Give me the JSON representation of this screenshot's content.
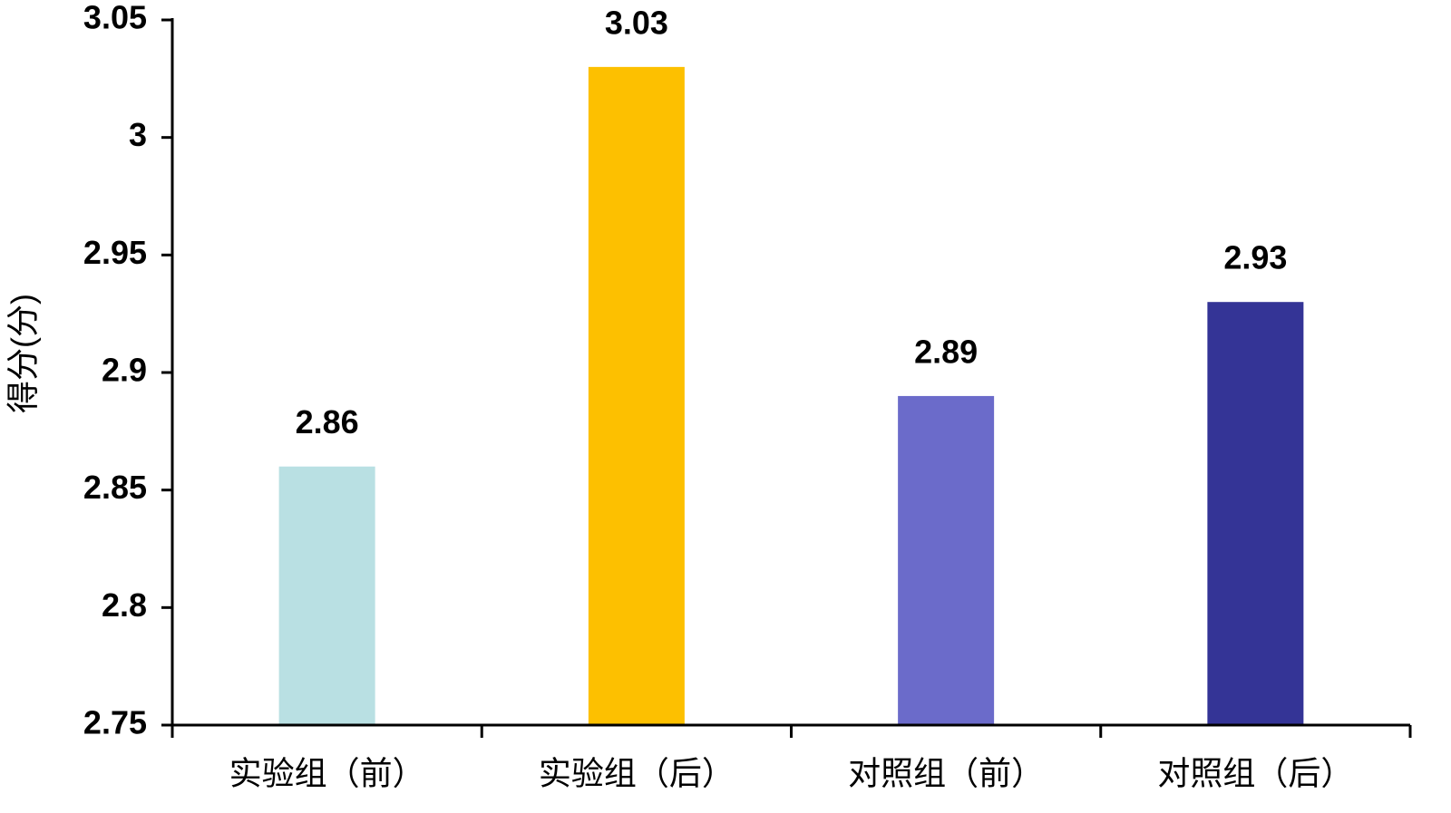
{
  "chart_data": {
    "type": "bar",
    "y_label": "得分(分)",
    "categories": [
      "实验组（前）",
      "实验组（后）",
      "对照组（前）",
      "对照组（后）"
    ],
    "values": [
      2.86,
      3.03,
      2.89,
      2.93
    ],
    "colors": [
      "#b9e0e3",
      "#fdc000",
      "#6b6bca",
      "#343496"
    ],
    "ylim": [
      2.75,
      3.05
    ],
    "yticks": [
      2.75,
      2.8,
      2.85,
      2.9,
      2.95,
      3,
      3.05
    ],
    "grid": false
  }
}
